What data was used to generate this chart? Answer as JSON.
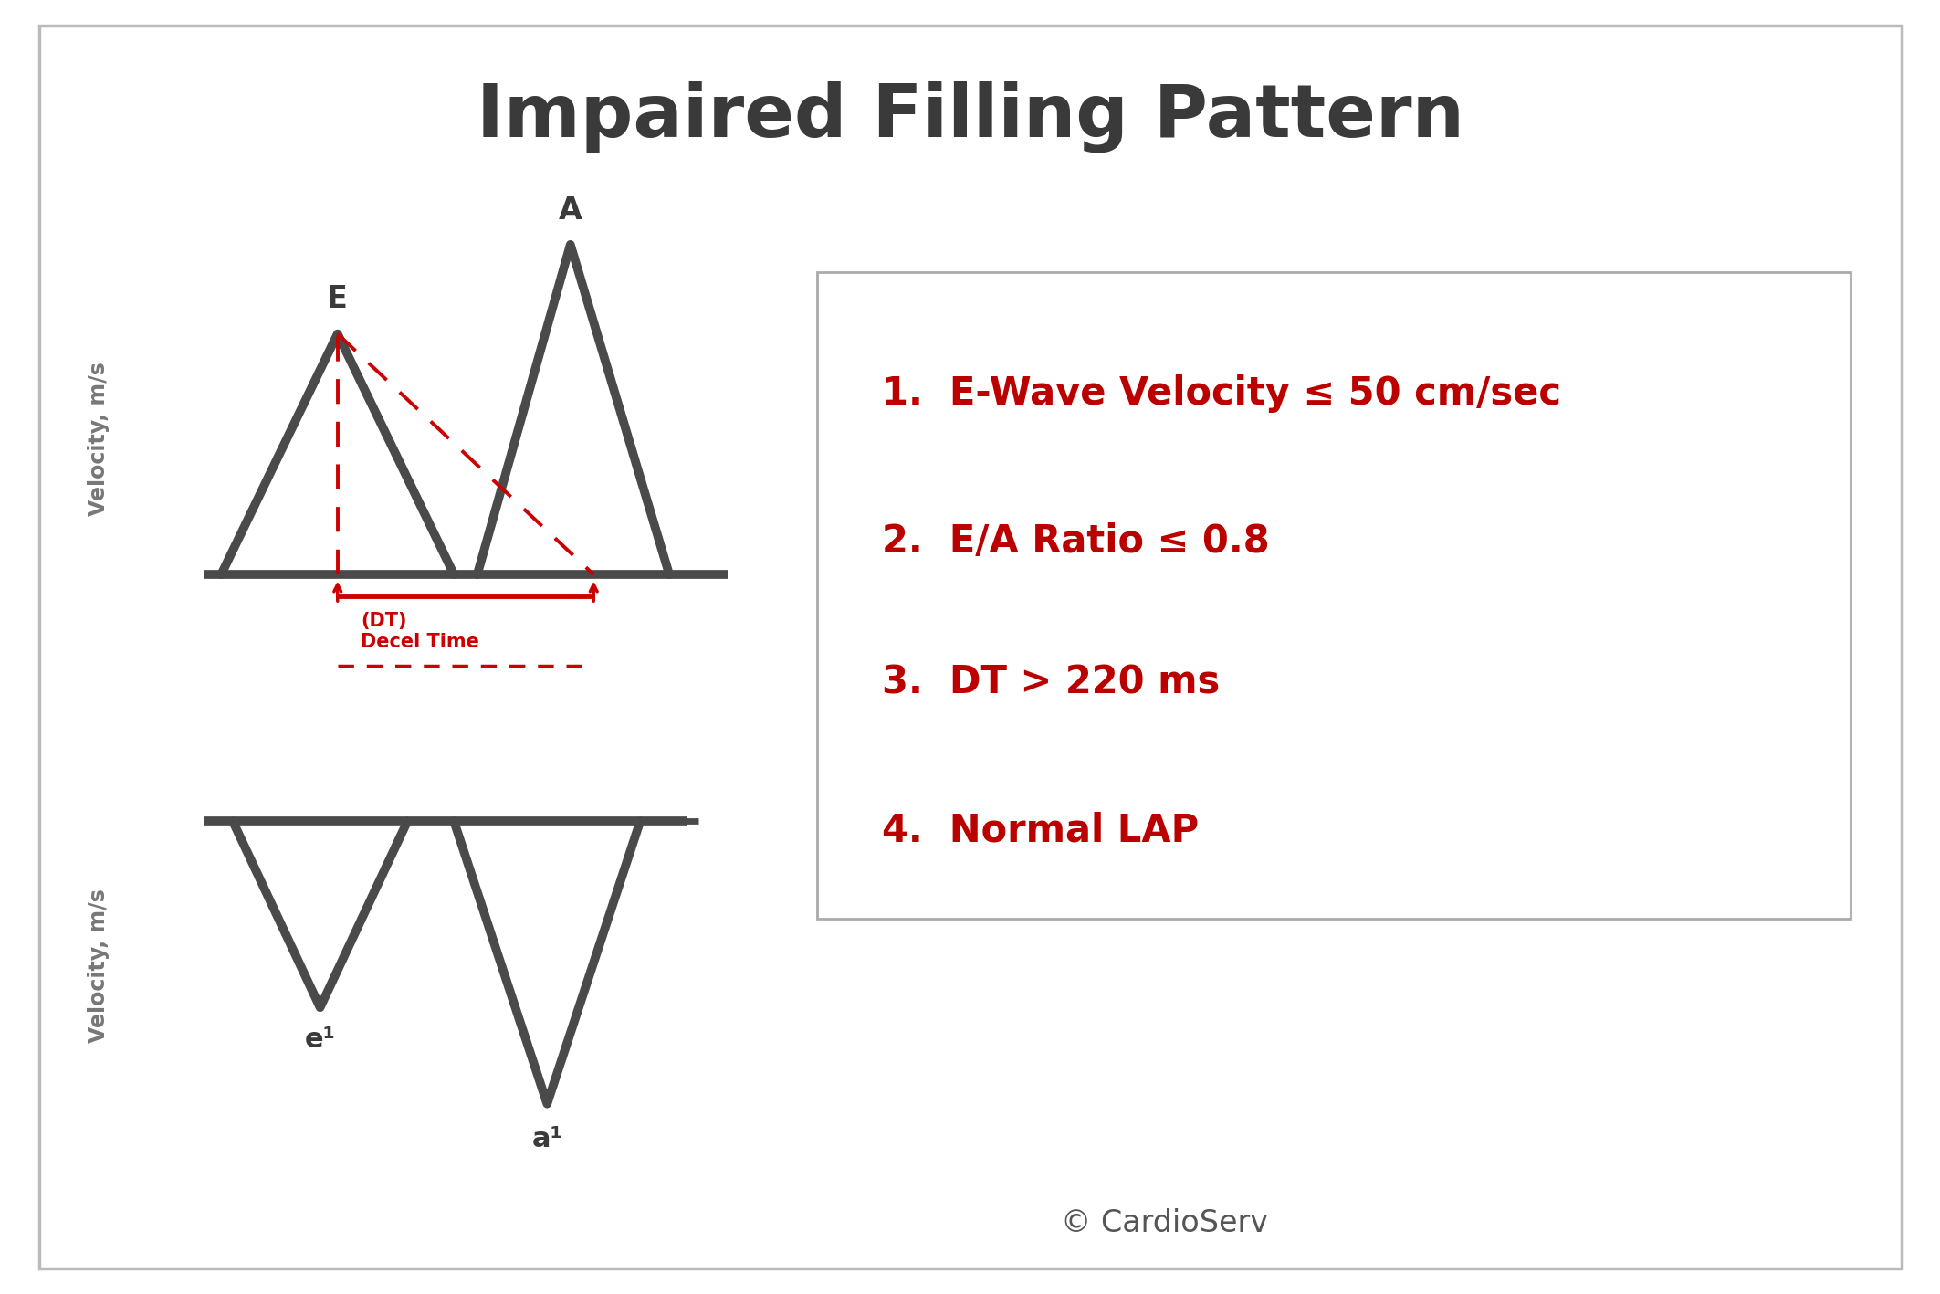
{
  "title": "Impaired Filling Pattern",
  "title_fontsize": 58,
  "title_color": "#3a3a3a",
  "title_fontweight": "bold",
  "background_color": "#ffffff",
  "border_color": "#bbbbbb",
  "wave_color": "#4a4a4a",
  "red_color": "#cc0000",
  "ylabel": "Velocity, m/s",
  "ylabel_fontsize": 17,
  "ylabel_color": "#777777",
  "copyright": "© CardioServ",
  "copyright_fontsize": 24,
  "copyright_color": "#555555",
  "bullet_items": [
    "1.  E-Wave Velocity ≤ 50 cm/sec",
    "2.  E/A Ratio ≤ 0.8",
    "3.  DT > 220 ms",
    "4.  Normal LAP"
  ],
  "bullet_fontsize": 30,
  "bullet_color": "#bb0000",
  "box_edge_color": "#aaaaaa",
  "E_label": "E",
  "A_label": "A",
  "e1_label": "e¹",
  "a1_label": "a¹",
  "wave_linewidth": 7.0,
  "baseline_linewidth": 7.0
}
